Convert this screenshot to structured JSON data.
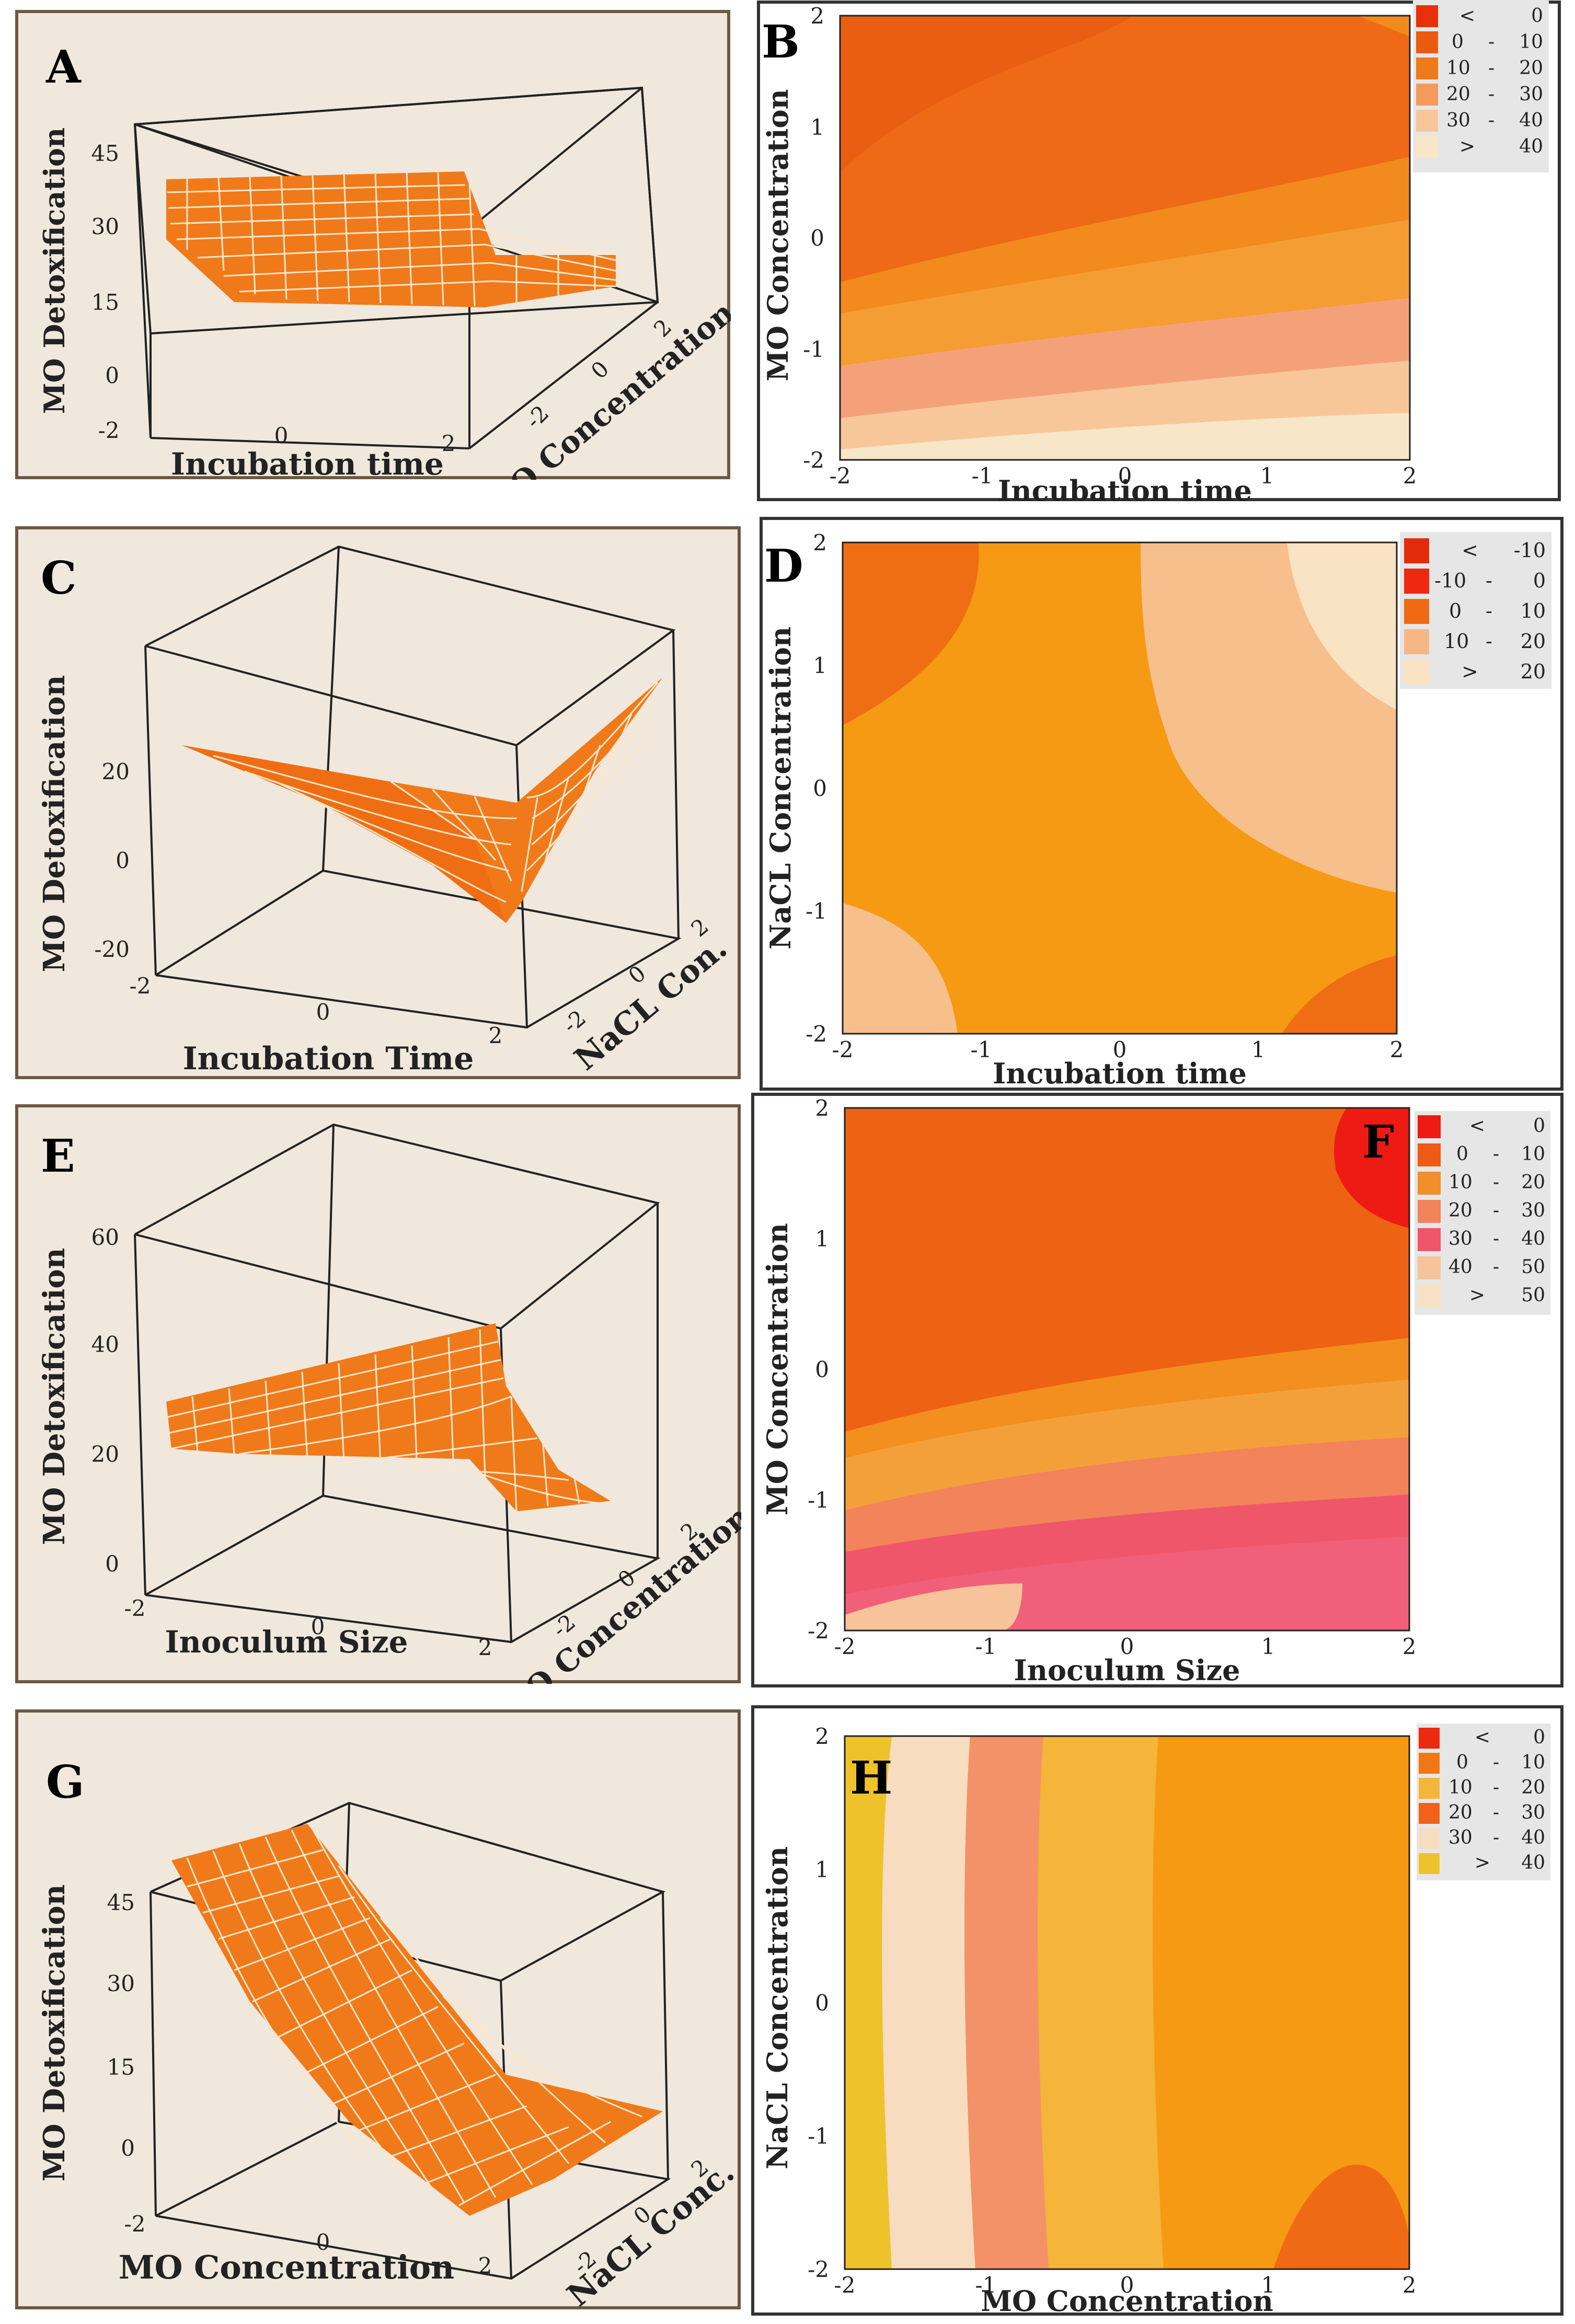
{
  "figure": {
    "panels_3d": [
      {
        "letter": "A",
        "zlabel": "MO Detoxification",
        "xlabel": "Incubation time",
        "ylabel": "MO Concentration",
        "zticks": [
          "45",
          "30",
          "15",
          "0"
        ],
        "xticks": [
          "-2",
          "0",
          "2"
        ],
        "yticks": [
          "-2",
          "0",
          "2"
        ]
      },
      {
        "letter": "C",
        "zlabel": "MO Detoxification",
        "xlabel": "Incubation Time",
        "ylabel": "NaCL Con.",
        "zticks": [
          "20",
          "0",
          "-20"
        ],
        "xticks": [
          "-2",
          "0",
          "2"
        ],
        "yticks": [
          "-2",
          "0",
          "2"
        ]
      },
      {
        "letter": "E",
        "zlabel": "MO Detoxification",
        "xlabel": "Inoculum Size",
        "ylabel": "MO Concentration",
        "zticks": [
          "60",
          "40",
          "20",
          "0"
        ],
        "xticks": [
          "-2",
          "0",
          "2"
        ],
        "yticks": [
          "-2",
          "0",
          "2"
        ]
      },
      {
        "letter": "G",
        "zlabel": "MO Detoxification",
        "xlabel": "MO Concentration",
        "ylabel": "NaCL Conc.",
        "zticks": [
          "45",
          "30",
          "15",
          "0"
        ],
        "xticks": [
          "-2",
          "0",
          "2"
        ],
        "yticks": [
          "-2",
          "0",
          "2"
        ]
      }
    ],
    "panels_contour": [
      {
        "letter": "B",
        "xlabel": "Incubation time",
        "ylabel": "MO Concentration",
        "xticks": [
          "-2",
          "-1",
          "0",
          "1",
          "2"
        ],
        "yticks": [
          "2",
          "1",
          "0",
          "-1",
          "-2"
        ],
        "legend": [
          {
            "op": "<",
            "lo": "",
            "hi": "0",
            "color": "#e8300a"
          },
          {
            "op": "",
            "lo": "0",
            "hi": "10",
            "color": "#ec5a12"
          },
          {
            "op": "",
            "lo": "10",
            "hi": "20",
            "color": "#f07a18"
          },
          {
            "op": "",
            "lo": "20",
            "hi": "30",
            "color": "#f49a5a"
          },
          {
            "op": "",
            "lo": "30",
            "hi": "40",
            "color": "#f7c79a"
          },
          {
            "op": ">",
            "lo": "",
            "hi": "40",
            "color": "#f8e6c8"
          }
        ]
      },
      {
        "letter": "D",
        "xlabel": "Incubation time",
        "ylabel": "NaCL Concentration",
        "xticks": [
          "-2",
          "-1",
          "0",
          "1",
          "2"
        ],
        "yticks": [
          "2",
          "1",
          "0",
          "-1",
          "-2"
        ],
        "legend": [
          {
            "op": "<",
            "lo": "",
            "hi": "-10",
            "color": "#e32c0c"
          },
          {
            "op": "",
            "lo": "-10",
            "hi": "0",
            "color": "#ef2810"
          },
          {
            "op": "",
            "lo": "0",
            "hi": "10",
            "color": "#f06a14"
          },
          {
            "op": "",
            "lo": "10",
            "hi": "20",
            "color": "#f6b787"
          },
          {
            "op": ">",
            "lo": "",
            "hi": "20",
            "color": "#f8e3c2"
          }
        ]
      },
      {
        "letter": "F",
        "xlabel": "Inoculum Size",
        "ylabel": "MO Concentration",
        "xticks": [
          "-2",
          "-1",
          "0",
          "1",
          "2"
        ],
        "yticks": [
          "2",
          "1",
          "0",
          "-1",
          "-2"
        ],
        "legend": [
          {
            "op": "<",
            "lo": "",
            "hi": "0",
            "color": "#ee1a14"
          },
          {
            "op": "",
            "lo": "0",
            "hi": "10",
            "color": "#ef5a14"
          },
          {
            "op": "",
            "lo": "10",
            "hi": "20",
            "color": "#f28f2a"
          },
          {
            "op": "",
            "lo": "20",
            "hi": "30",
            "color": "#f3835a"
          },
          {
            "op": "",
            "lo": "30",
            "hi": "40",
            "color": "#f0566a"
          },
          {
            "op": "",
            "lo": "40",
            "hi": "50",
            "color": "#f6c39a"
          },
          {
            "op": ">",
            "lo": "",
            "hi": "50",
            "color": "#f8e2c4"
          }
        ]
      },
      {
        "letter": "H",
        "xlabel": "MO Concentration",
        "ylabel": "NaCL Concentration",
        "xticks": [
          "-2",
          "-1",
          "0",
          "1",
          "2"
        ],
        "yticks": [
          "2",
          "1",
          "0",
          "-1",
          "-2"
        ],
        "legend": [
          {
            "op": "<",
            "lo": "",
            "hi": "0",
            "color": "#ec2a10"
          },
          {
            "op": "",
            "lo": "0",
            "hi": "10",
            "color": "#f07814"
          },
          {
            "op": "",
            "lo": "10",
            "hi": "20",
            "color": "#f5b43a"
          },
          {
            "op": "",
            "lo": "20",
            "hi": "30",
            "color": "#f0621a"
          },
          {
            "op": "",
            "lo": "30",
            "hi": "40",
            "color": "#f8dcc0"
          },
          {
            "op": ">",
            "lo": "",
            "hi": "40",
            "color": "#eec22a"
          }
        ]
      }
    ]
  },
  "chart_data": [
    {
      "type": "surface",
      "panel": "A",
      "title": "",
      "xlabel": "Incubation time",
      "ylabel": "MO Concentration",
      "zlabel": "MO Detoxification",
      "xlim": [
        -2,
        2
      ],
      "ylim": [
        -2,
        2
      ],
      "zlim": [
        0,
        45
      ],
      "description_values": {
        "z_at_low_mo": 38,
        "z_at_high_mo": 16
      }
    },
    {
      "type": "contour",
      "panel": "B",
      "xlabel": "Incubation time",
      "ylabel": "MO Concentration",
      "xlim": [
        -2,
        2
      ],
      "ylim": [
        -2,
        2
      ],
      "levels": [
        "< 0",
        "0 - 10",
        "10 - 20",
        "20 - 30",
        "30 - 40",
        "> 40"
      ]
    },
    {
      "type": "surface",
      "panel": "C",
      "xlabel": "Incubation Time",
      "ylabel": "NaCL Con.",
      "zlabel": "MO Detoxification",
      "xlim": [
        -2,
        2
      ],
      "ylim": [
        -2,
        2
      ],
      "zlim": [
        -20,
        20
      ]
    },
    {
      "type": "contour",
      "panel": "D",
      "xlabel": "Incubation time",
      "ylabel": "NaCL Concentration",
      "xlim": [
        -2,
        2
      ],
      "ylim": [
        -2,
        2
      ],
      "levels": [
        "< -10",
        "-10 - 0",
        "0 - 10",
        "10 - 20",
        "> 20"
      ]
    },
    {
      "type": "surface",
      "panel": "E",
      "xlabel": "Inoculum Size",
      "ylabel": "MO Concentration",
      "zlabel": "MO Detoxification",
      "xlim": [
        -2,
        2
      ],
      "ylim": [
        -2,
        2
      ],
      "zlim": [
        0,
        60
      ]
    },
    {
      "type": "contour",
      "panel": "F",
      "xlabel": "Inoculum Size",
      "ylabel": "MO Concentration",
      "xlim": [
        -2,
        2
      ],
      "ylim": [
        -2,
        2
      ],
      "levels": [
        "< 0",
        "0 - 10",
        "10 - 20",
        "20 - 30",
        "30 - 40",
        "40 - 50",
        "> 50"
      ]
    },
    {
      "type": "surface",
      "panel": "G",
      "xlabel": "MO Concentration",
      "ylabel": "NaCL Conc.",
      "zlabel": "MO Detoxification",
      "xlim": [
        -2,
        2
      ],
      "ylim": [
        -2,
        2
      ],
      "zlim": [
        0,
        45
      ]
    },
    {
      "type": "contour",
      "panel": "H",
      "xlabel": "MO Concentration",
      "ylabel": "NaCL Concentration",
      "xlim": [
        -2,
        2
      ],
      "ylim": [
        -2,
        2
      ],
      "levels": [
        "< 0",
        "0 - 10",
        "10 - 20",
        "20 - 30",
        "30 - 40",
        "> 40"
      ]
    }
  ]
}
